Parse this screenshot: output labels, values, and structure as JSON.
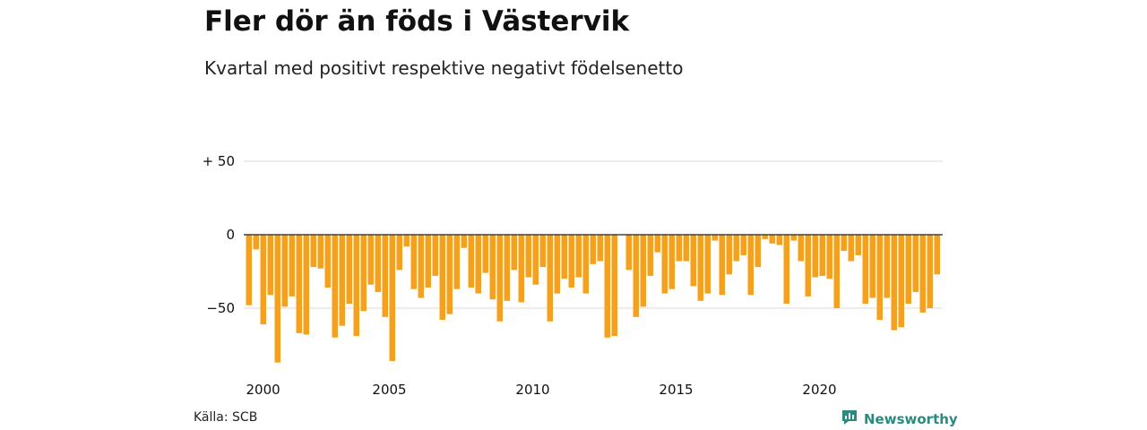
{
  "title": "Fler dör än föds i Västervik",
  "subtitle": "Kvartal med positivt respektive negativt födelsenetto",
  "source": "Källa: SCB",
  "brand": {
    "name": "Newsworthy",
    "icon": "newsworthy-logo-icon",
    "color": "#2a8a80"
  },
  "chart_data": {
    "type": "bar",
    "title": "Fler dör än föds i Västervik",
    "subtitle": "Kvartal med positivt respektive negativt födelsenetto",
    "bar_color": "#f5a01e",
    "grid": true,
    "ylim": [
      -90,
      52
    ],
    "y_ticks": [
      {
        "value": 50,
        "label": "+ 50"
      },
      {
        "value": 0,
        "label": "0"
      },
      {
        "value": -50,
        "label": "−50"
      }
    ],
    "x_ticks": [
      {
        "year": 2000,
        "label": "2000"
      },
      {
        "year": 2005,
        "label": "2005"
      },
      {
        "year": 2010,
        "label": "2010"
      },
      {
        "year": 2015,
        "label": "2015"
      },
      {
        "year": 2020,
        "label": "2020"
      }
    ],
    "start": {
      "year": 2000,
      "quarter": 1
    },
    "values": [
      -48,
      -10,
      -61,
      -41,
      -87,
      -49,
      -42,
      -67,
      -68,
      -22,
      -23,
      -36,
      -70,
      -62,
      -47,
      -69,
      -52,
      -34,
      -39,
      -56,
      -86,
      -24,
      -8,
      -37,
      -43,
      -36,
      -28,
      -58,
      -54,
      -37,
      -9,
      -36,
      -40,
      -26,
      -44,
      -59,
      -45,
      -24,
      -46,
      -29,
      -34,
      -22,
      -59,
      -40,
      -30,
      -36,
      -29,
      -40,
      -20,
      -18,
      -70,
      -69,
      0,
      -24,
      -56,
      -49,
      -28,
      -12,
      -40,
      -37,
      -18,
      -18,
      -35,
      -45,
      -40,
      -4,
      -41,
      -27,
      -18,
      -14,
      -41,
      -22,
      -3,
      -6,
      -7,
      -47,
      -4,
      -18,
      -42,
      -29,
      -28,
      -30,
      -50,
      -11,
      -18,
      -14,
      -47,
      -43,
      -58,
      -43,
      -65,
      -63,
      -47,
      -39,
      -53,
      -50,
      -27
    ]
  }
}
